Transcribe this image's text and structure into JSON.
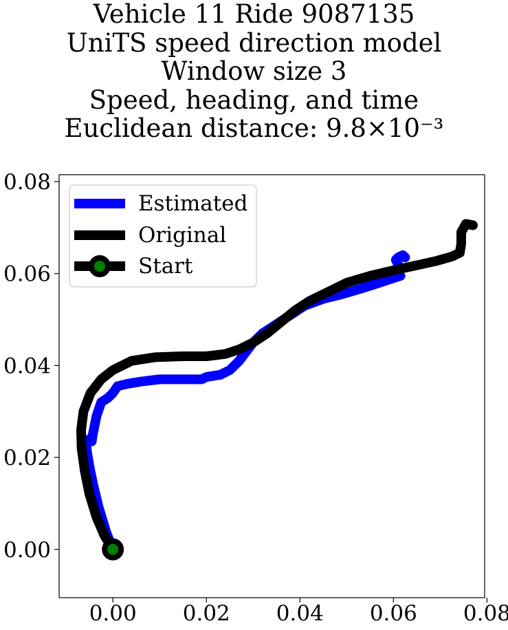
{
  "chart_data": {
    "type": "line",
    "title_lines": [
      "Vehicle 11 Ride 9087135",
      "UniTS speed direction model",
      "Window size 3",
      "Speed, heading, and time",
      "Euclidean distance: 9.8×10⁻³"
    ],
    "xlim": [
      -0.0115,
      0.0795
    ],
    "ylim": [
      -0.0105,
      0.0815
    ],
    "xticks": [
      0.0,
      0.02,
      0.04,
      0.06,
      0.08
    ],
    "yticks": [
      0.0,
      0.02,
      0.04,
      0.06,
      0.08
    ],
    "xtick_labels": [
      "0.00",
      "0.02",
      "0.04",
      "0.06",
      "0.08"
    ],
    "ytick_labels": [
      "0.00",
      "0.02",
      "0.04",
      "0.06",
      "0.08"
    ],
    "legend_position": "upper-left",
    "series": [
      {
        "name": "Estimated",
        "color": "#0000ff",
        "points": [
          [
            0.0,
            0.0
          ],
          [
            -0.0015,
            0.004
          ],
          [
            -0.003,
            0.009
          ],
          [
            -0.0042,
            0.014
          ],
          [
            -0.005,
            0.018
          ],
          [
            -0.0055,
            0.021
          ],
          [
            -0.0058,
            0.0235
          ],
          [
            -0.005,
            0.024
          ],
          [
            -0.0045,
            0.0235
          ],
          [
            -0.0043,
            0.025
          ],
          [
            -0.0035,
            0.029
          ],
          [
            -0.0025,
            0.032
          ],
          [
            -0.001,
            0.033
          ],
          [
            0.0,
            0.034
          ],
          [
            0.001,
            0.0355
          ],
          [
            0.003,
            0.036
          ],
          [
            0.006,
            0.0365
          ],
          [
            0.01,
            0.037
          ],
          [
            0.015,
            0.037
          ],
          [
            0.019,
            0.037
          ],
          [
            0.02,
            0.0375
          ],
          [
            0.023,
            0.038
          ],
          [
            0.025,
            0.039
          ],
          [
            0.027,
            0.041
          ],
          [
            0.0285,
            0.043
          ],
          [
            0.03,
            0.045
          ],
          [
            0.032,
            0.047
          ],
          [
            0.035,
            0.049
          ],
          [
            0.038,
            0.051
          ],
          [
            0.041,
            0.053
          ],
          [
            0.045,
            0.0545
          ],
          [
            0.049,
            0.0555
          ],
          [
            0.053,
            0.0567
          ],
          [
            0.057,
            0.058
          ],
          [
            0.06,
            0.059
          ],
          [
            0.0615,
            0.0595
          ],
          [
            0.061,
            0.06
          ],
          [
            0.061,
            0.062
          ],
          [
            0.0605,
            0.063
          ],
          [
            0.061,
            0.0635
          ],
          [
            0.062,
            0.064
          ],
          [
            0.0625,
            0.0635
          ]
        ]
      },
      {
        "name": "Original",
        "color": "#000000",
        "points": [
          [
            0.0,
            0.0
          ],
          [
            -0.0018,
            0.003
          ],
          [
            -0.0035,
            0.007
          ],
          [
            -0.005,
            0.012
          ],
          [
            -0.006,
            0.017
          ],
          [
            -0.0067,
            0.022
          ],
          [
            -0.0068,
            0.026
          ],
          [
            -0.0063,
            0.03
          ],
          [
            -0.0048,
            0.034
          ],
          [
            -0.0025,
            0.037
          ],
          [
            0.0,
            0.039
          ],
          [
            0.004,
            0.041
          ],
          [
            0.009,
            0.0418
          ],
          [
            0.015,
            0.042
          ],
          [
            0.02,
            0.042
          ],
          [
            0.024,
            0.0425
          ],
          [
            0.027,
            0.0435
          ],
          [
            0.03,
            0.045
          ],
          [
            0.033,
            0.047
          ],
          [
            0.036,
            0.0495
          ],
          [
            0.039,
            0.052
          ],
          [
            0.042,
            0.054
          ],
          [
            0.046,
            0.056
          ],
          [
            0.05,
            0.058
          ],
          [
            0.055,
            0.0595
          ],
          [
            0.06,
            0.0607
          ],
          [
            0.065,
            0.0618
          ],
          [
            0.069,
            0.0627
          ],
          [
            0.0725,
            0.0637
          ],
          [
            0.0742,
            0.0645
          ],
          [
            0.0745,
            0.0665
          ],
          [
            0.0745,
            0.069
          ],
          [
            0.0755,
            0.0708
          ],
          [
            0.077,
            0.0705
          ]
        ]
      }
    ],
    "start_point": {
      "name": "Start",
      "x": 0.0,
      "y": 0.0,
      "line_color": "#000000",
      "marker_color": "#008000"
    }
  }
}
